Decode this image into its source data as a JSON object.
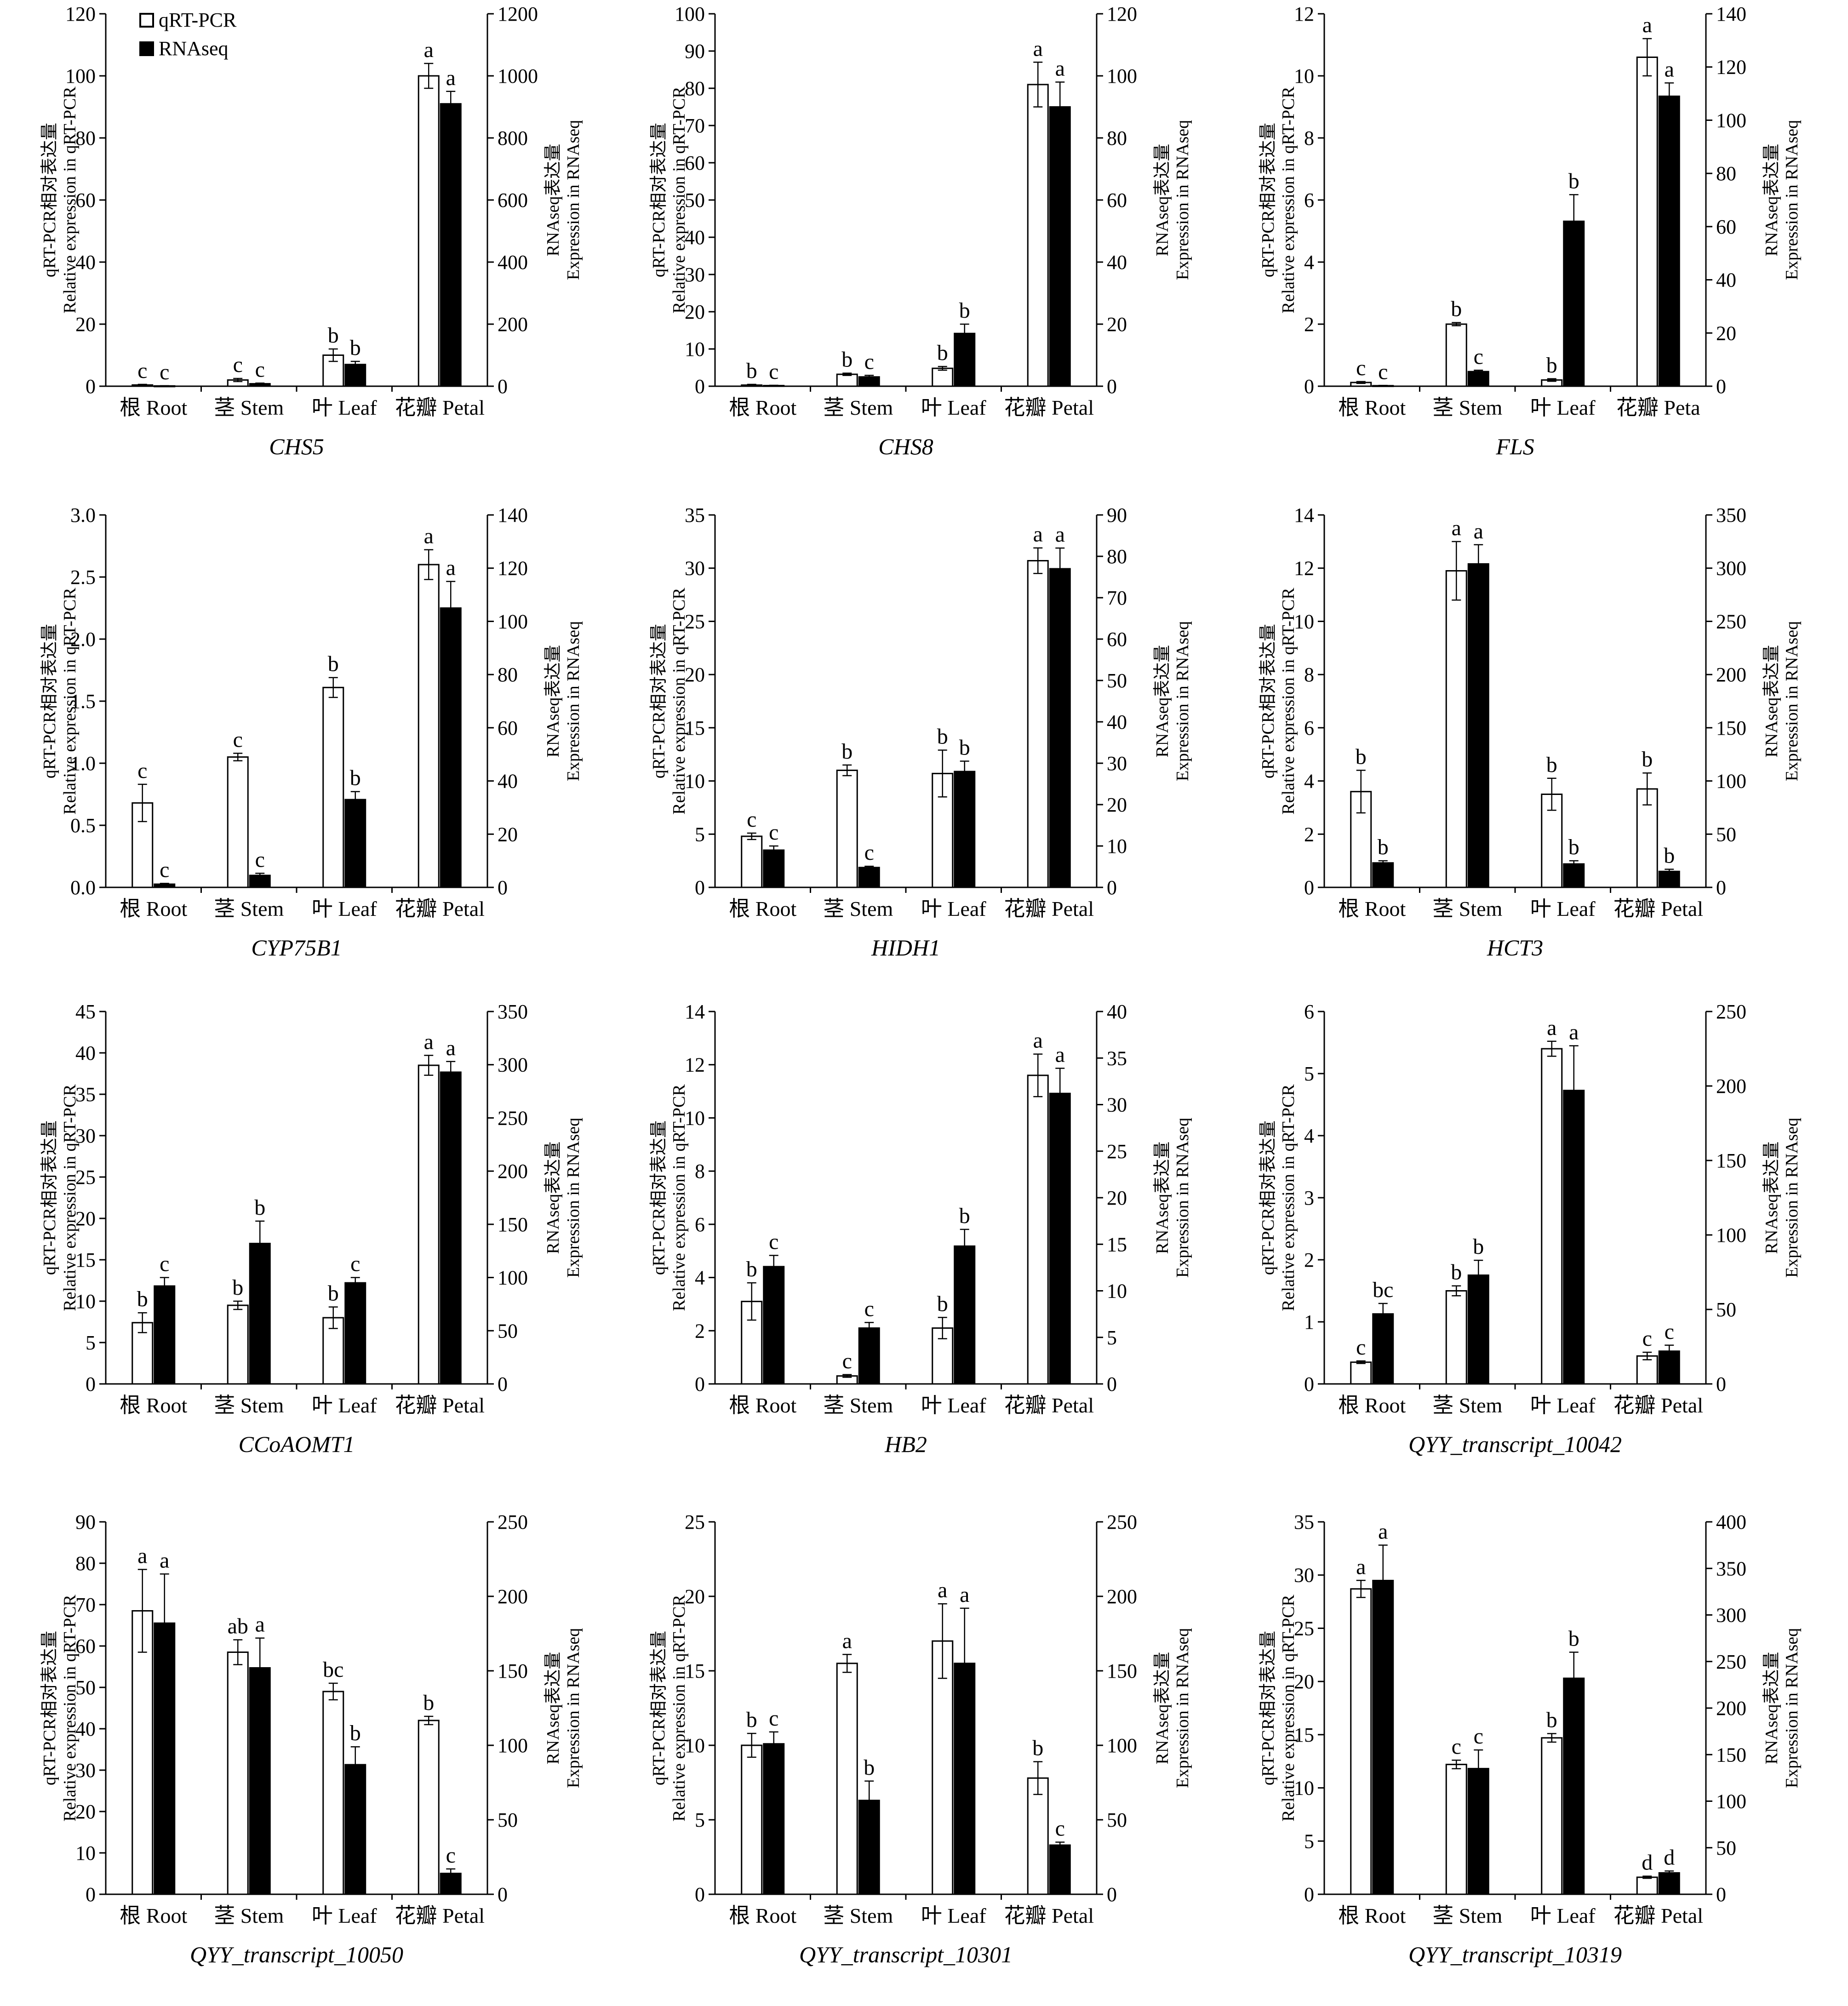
{
  "legend": {
    "qpcr_label": "qRT-PCR",
    "rnaseq_label": "RNAseq",
    "qpcr_color": "#ffffff",
    "rnaseq_color": "#000000"
  },
  "axis_labels": {
    "left_line1": "qRT-PCR相对表达量",
    "left_line2": "Relative expression in qRT-PCR",
    "right_line1": "RNAseq表达量",
    "right_line2": "Expression in RNAseq"
  },
  "chart_data": [
    {
      "type": "bar",
      "title": "CHS5",
      "categories": [
        "根 Root",
        "茎 Stem",
        "叶 Leaf",
        "花瓣 Petal"
      ],
      "ylim_left": [
        0,
        120
      ],
      "yticks_left": [
        0,
        20,
        40,
        60,
        80,
        100,
        120
      ],
      "ylim_right": [
        0,
        1200
      ],
      "yticks_right": [
        0,
        200,
        400,
        600,
        800,
        1000,
        1200
      ],
      "series": [
        {
          "name": "qRT-PCR",
          "axis": "left",
          "values": [
            0.4,
            2,
            10,
            100
          ],
          "errors": [
            0.2,
            0.5,
            2,
            4
          ],
          "labels": [
            "c",
            "c",
            "b",
            "a"
          ]
        },
        {
          "name": "RNAseq",
          "axis": "right",
          "values": [
            1,
            8,
            70,
            910
          ],
          "errors": [
            0.5,
            2,
            10,
            40
          ],
          "labels": [
            "c",
            "c",
            "b",
            "a"
          ]
        }
      ]
    },
    {
      "type": "bar",
      "title": "CHS8",
      "categories": [
        "根 Root",
        "茎 Stem",
        "叶 Leaf",
        "花瓣 Petal"
      ],
      "ylim_left": [
        0,
        100
      ],
      "yticks_left": [
        0,
        10,
        20,
        30,
        40,
        50,
        60,
        70,
        80,
        90,
        100
      ],
      "ylim_right": [
        0,
        120
      ],
      "yticks_right": [
        0,
        20,
        40,
        60,
        80,
        100,
        120
      ],
      "series": [
        {
          "name": "qRT-PCR",
          "axis": "left",
          "values": [
            0.3,
            3.2,
            4.8,
            81
          ],
          "errors": [
            0.2,
            0.3,
            0.5,
            6
          ],
          "labels": [
            "b",
            "b",
            "b",
            "a"
          ]
        },
        {
          "name": "RNAseq",
          "axis": "right",
          "values": [
            0.2,
            3,
            17,
            90
          ],
          "errors": [
            0.1,
            0.5,
            3,
            8
          ],
          "labels": [
            "c",
            "c",
            "b",
            "a"
          ]
        }
      ]
    },
    {
      "type": "bar",
      "title": "FLS",
      "categories": [
        "根 Root",
        "茎 Stem",
        "叶 Leaf",
        "花瓣 Peta"
      ],
      "ylim_left": [
        0,
        12
      ],
      "yticks_left": [
        0,
        2,
        4,
        6,
        8,
        10,
        12
      ],
      "ylim_right": [
        0,
        140
      ],
      "yticks_right": [
        0,
        20,
        40,
        60,
        80,
        100,
        120,
        140
      ],
      "series": [
        {
          "name": "qRT-PCR",
          "axis": "left",
          "values": [
            0.12,
            2,
            0.2,
            10.6
          ],
          "errors": [
            0.03,
            0.05,
            0.04,
            0.6
          ],
          "labels": [
            "c",
            "b",
            "b",
            "a"
          ]
        },
        {
          "name": "RNAseq",
          "axis": "right",
          "values": [
            0.2,
            5.5,
            62,
            109
          ],
          "errors": [
            0.1,
            0.5,
            10,
            5
          ],
          "labels": [
            "c",
            "c",
            "b",
            "a"
          ]
        }
      ]
    },
    {
      "type": "bar",
      "title": "CYP75B1",
      "categories": [
        "根 Root",
        "茎 Stem",
        "叶 Leaf",
        "花瓣 Petal"
      ],
      "ylim_left": [
        0,
        3.0
      ],
      "yticks_left": [
        0,
        0.5,
        1.0,
        1.5,
        2.0,
        2.5,
        3.0
      ],
      "ylim_right": [
        0,
        140
      ],
      "yticks_right": [
        0,
        20,
        40,
        60,
        80,
        100,
        120,
        140
      ],
      "series": [
        {
          "name": "qRT-PCR",
          "axis": "left",
          "values": [
            0.68,
            1.05,
            1.61,
            2.6
          ],
          "errors": [
            0.15,
            0.03,
            0.08,
            0.12
          ],
          "labels": [
            "c",
            "c",
            "b",
            "a"
          ]
        },
        {
          "name": "RNAseq",
          "axis": "right",
          "values": [
            1.2,
            4.5,
            33,
            105
          ],
          "errors": [
            0.3,
            0.8,
            3,
            10
          ],
          "labels": [
            "c",
            "c",
            "b",
            "a"
          ]
        }
      ]
    },
    {
      "type": "bar",
      "title": "HIDH1",
      "categories": [
        "根 Root",
        "茎 Stem",
        "叶 Leaf",
        "花瓣 Petal"
      ],
      "ylim_left": [
        0,
        35
      ],
      "yticks_left": [
        0,
        5,
        10,
        15,
        20,
        25,
        30,
        35
      ],
      "ylim_right": [
        0,
        90
      ],
      "yticks_right": [
        0,
        10,
        20,
        30,
        40,
        50,
        60,
        70,
        80,
        90
      ],
      "series": [
        {
          "name": "qRT-PCR",
          "axis": "left",
          "values": [
            4.8,
            11,
            10.7,
            30.7
          ],
          "errors": [
            0.3,
            0.5,
            2.2,
            1.2
          ],
          "labels": [
            "c",
            "b",
            "b",
            "a"
          ]
        },
        {
          "name": "RNAseq",
          "axis": "right",
          "values": [
            9,
            4.8,
            28,
            77
          ],
          "errors": [
            1,
            0.3,
            2.5,
            5
          ],
          "labels": [
            "c",
            "c",
            "b",
            "a"
          ]
        }
      ]
    },
    {
      "type": "bar",
      "title": "HCT3",
      "categories": [
        "根 Root",
        "茎 Stem",
        "叶 Leaf",
        "花瓣 Petal"
      ],
      "ylim_left": [
        0,
        14
      ],
      "yticks_left": [
        0,
        2,
        4,
        6,
        8,
        10,
        12,
        14
      ],
      "ylim_right": [
        0,
        350
      ],
      "yticks_right": [
        0,
        50,
        100,
        150,
        200,
        250,
        300,
        350
      ],
      "series": [
        {
          "name": "qRT-PCR",
          "axis": "left",
          "values": [
            3.6,
            11.9,
            3.5,
            3.7
          ],
          "errors": [
            0.8,
            1.1,
            0.6,
            0.6
          ],
          "labels": [
            "b",
            "a",
            "b",
            "b"
          ]
        },
        {
          "name": "RNAseq",
          "axis": "right",
          "values": [
            23,
            304,
            22,
            15
          ],
          "errors": [
            2,
            18,
            3,
            2
          ],
          "labels": [
            "b",
            "a",
            "b",
            "b"
          ]
        }
      ]
    },
    {
      "type": "bar",
      "title": "CCoAOMT1",
      "categories": [
        "根 Root",
        "茎 Stem",
        "叶 Leaf",
        "花瓣 Petal"
      ],
      "ylim_left": [
        0,
        45
      ],
      "yticks_left": [
        0,
        5,
        10,
        15,
        20,
        25,
        30,
        35,
        40,
        45
      ],
      "ylim_right": [
        0,
        350
      ],
      "yticks_right": [
        0,
        50,
        100,
        150,
        200,
        250,
        300,
        350
      ],
      "series": [
        {
          "name": "qRT-PCR",
          "axis": "left",
          "values": [
            7.4,
            9.5,
            8,
            38.5
          ],
          "errors": [
            1.2,
            0.5,
            1.3,
            1.2
          ],
          "labels": [
            "b",
            "b",
            "b",
            "a"
          ]
        },
        {
          "name": "RNAseq",
          "axis": "right",
          "values": [
            92,
            132,
            95,
            293
          ],
          "errors": [
            8,
            21,
            5,
            10
          ],
          "labels": [
            "c",
            "b",
            "c",
            "a"
          ]
        }
      ]
    },
    {
      "type": "bar",
      "title": "HB2",
      "categories": [
        "根 Root",
        "茎 Stem",
        "叶 Leaf",
        "花瓣 Petal"
      ],
      "ylim_left": [
        0,
        14
      ],
      "yticks_left": [
        0,
        2,
        4,
        6,
        8,
        10,
        12,
        14
      ],
      "ylim_right": [
        0,
        40
      ],
      "yticks_right": [
        0,
        5,
        10,
        15,
        20,
        25,
        30,
        35,
        40
      ],
      "series": [
        {
          "name": "qRT-PCR",
          "axis": "left",
          "values": [
            3.1,
            0.3,
            2.1,
            11.6
          ],
          "errors": [
            0.7,
            0.05,
            0.4,
            0.8
          ],
          "labels": [
            "b",
            "c",
            "b",
            "a"
          ]
        },
        {
          "name": "RNAseq",
          "axis": "right",
          "values": [
            12.6,
            6,
            14.8,
            31.2
          ],
          "errors": [
            1.2,
            0.6,
            1.8,
            2.7
          ],
          "labels": [
            "c",
            "c",
            "b",
            "a"
          ]
        }
      ]
    },
    {
      "type": "bar",
      "title": "QYY_transcript_10042",
      "categories": [
        "根 Root",
        "茎 Stem",
        "叶 Leaf",
        "花瓣 Petal"
      ],
      "ylim_left": [
        0,
        6
      ],
      "yticks_left": [
        0,
        1,
        2,
        3,
        4,
        5,
        6
      ],
      "ylim_right": [
        0,
        250
      ],
      "yticks_right": [
        0,
        50,
        100,
        150,
        200,
        250
      ],
      "series": [
        {
          "name": "qRT-PCR",
          "axis": "left",
          "values": [
            0.35,
            1.5,
            5.4,
            0.45
          ],
          "errors": [
            0.02,
            0.08,
            0.12,
            0.06
          ],
          "labels": [
            "c",
            "b",
            "a",
            "c"
          ]
        },
        {
          "name": "RNAseq",
          "axis": "right",
          "values": [
            47,
            73,
            197,
            22
          ],
          "errors": [
            7,
            10,
            30,
            4
          ],
          "labels": [
            "bc",
            "b",
            "a",
            "c"
          ]
        }
      ]
    },
    {
      "type": "bar",
      "title": "QYY_transcript_10050",
      "categories": [
        "根 Root",
        "茎 Stem",
        "叶 Leaf",
        "花瓣 Petal"
      ],
      "ylim_left": [
        0,
        90
      ],
      "yticks_left": [
        0,
        10,
        20,
        30,
        40,
        50,
        60,
        70,
        80,
        90
      ],
      "ylim_right": [
        0,
        250
      ],
      "yticks_right": [
        0,
        50,
        100,
        150,
        200,
        250
      ],
      "series": [
        {
          "name": "qRT-PCR",
          "axis": "left",
          "values": [
            68.5,
            58.5,
            49,
            42
          ],
          "errors": [
            10,
            3,
            2,
            1
          ],
          "labels": [
            "a",
            "ab",
            "bc",
            "b"
          ]
        },
        {
          "name": "RNAseq",
          "axis": "right",
          "values": [
            182,
            152,
            87,
            14
          ],
          "errors": [
            33,
            20,
            12,
            3
          ],
          "labels": [
            "a",
            "a",
            "b",
            "c"
          ]
        }
      ]
    },
    {
      "type": "bar",
      "title": "QYY_transcript_10301",
      "categories": [
        "根 Root",
        "茎 Stem",
        "叶 Leaf",
        "花瓣 Petal"
      ],
      "ylim_left": [
        0,
        25
      ],
      "yticks_left": [
        0,
        5,
        10,
        15,
        20,
        25
      ],
      "ylim_right": [
        0,
        250
      ],
      "yticks_right": [
        0,
        50,
        100,
        150,
        200,
        250
      ],
      "series": [
        {
          "name": "qRT-PCR",
          "axis": "left",
          "values": [
            10,
            15.5,
            17,
            7.8
          ],
          "errors": [
            0.8,
            0.6,
            2.5,
            1.1
          ],
          "labels": [
            "b",
            "a",
            "a",
            "b"
          ]
        },
        {
          "name": "RNAseq",
          "axis": "right",
          "values": [
            101,
            63,
            155,
            33
          ],
          "errors": [
            8,
            13,
            37,
            2
          ],
          "labels": [
            "c",
            "b",
            "a",
            "c"
          ]
        }
      ]
    },
    {
      "type": "bar",
      "title": "QYY_transcript_10319",
      "categories": [
        "根 Root",
        "茎 Stem",
        "叶 Leaf",
        "花瓣 Petal"
      ],
      "ylim_left": [
        0,
        35
      ],
      "yticks_left": [
        0,
        5,
        10,
        15,
        20,
        25,
        30,
        35
      ],
      "ylim_right": [
        0,
        400
      ],
      "yticks_right": [
        0,
        50,
        100,
        150,
        200,
        250,
        300,
        350,
        400
      ],
      "series": [
        {
          "name": "qRT-PCR",
          "axis": "left",
          "values": [
            28.7,
            12.2,
            14.7,
            1.6
          ],
          "errors": [
            0.8,
            0.4,
            0.4,
            0.1
          ],
          "labels": [
            "a",
            "c",
            "b",
            "d"
          ]
        },
        {
          "name": "RNAseq",
          "axis": "right",
          "values": [
            337,
            135,
            232,
            23
          ],
          "errors": [
            38,
            20,
            28,
            2
          ],
          "labels": [
            "a",
            "c",
            "b",
            "d"
          ]
        }
      ]
    }
  ]
}
